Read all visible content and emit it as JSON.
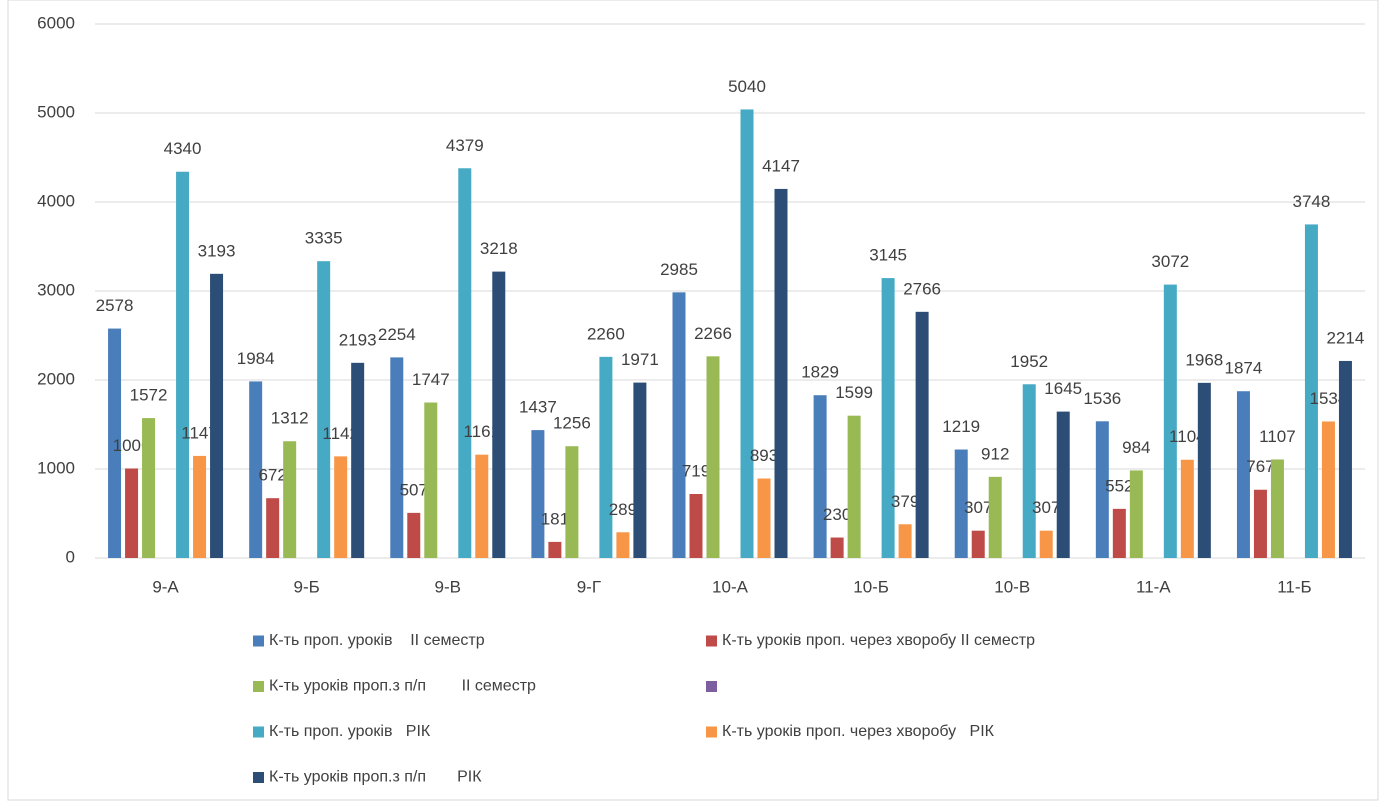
{
  "chart_data": {
    "type": "bar",
    "categories": [
      "9-А",
      "9-Б",
      "9-В",
      "9-Г",
      "10-А",
      "10-Б",
      "10-В",
      "11-А",
      "11-Б"
    ],
    "series": [
      {
        "name": "К-ть проп. уроків    ІІ семестр",
        "color": "#4a7ebb",
        "values": [
          2578,
          1984,
          2254,
          1437,
          2985,
          1829,
          1219,
          1536,
          1874
        ]
      },
      {
        "name": "К-ть уроків проп. через хворобу ІІ семестр",
        "color": "#be4b48",
        "values": [
          1006,
          672,
          507,
          181,
          719,
          230,
          307,
          552,
          767
        ]
      },
      {
        "name": "К-ть уроків проп.з п/п        ІІ семестр",
        "color": "#98b954",
        "values": [
          1572,
          1312,
          1747,
          1256,
          2266,
          1599,
          912,
          984,
          1107
        ]
      },
      {
        "color": "#7d5fa0",
        "values": [
          null,
          null,
          null,
          null,
          null,
          null,
          null,
          null,
          null
        ]
      },
      {
        "name": "К-ть проп. уроків   РІК",
        "color": "#46aac5",
        "values": [
          4340,
          3335,
          4379,
          2260,
          5040,
          3145,
          1952,
          3072,
          3748
        ]
      },
      {
        "name": "К-ть уроків проп. через хворобу   РІК",
        "color": "#f79646",
        "values": [
          1147,
          1142,
          1161,
          289,
          893,
          379,
          307,
          1104,
          1534
        ]
      },
      {
        "name": "К-ть уроків проп.з п/п       РІК",
        "color": "#2c4d75",
        "values": [
          3193,
          2193,
          3218,
          1971,
          4147,
          2766,
          1645,
          1968,
          2214
        ]
      }
    ],
    "ylim": [
      0,
      6000
    ],
    "yticks": [
      0,
      1000,
      2000,
      3000,
      4000,
      5000,
      6000
    ],
    "grid": true,
    "legend": "bottom"
  }
}
